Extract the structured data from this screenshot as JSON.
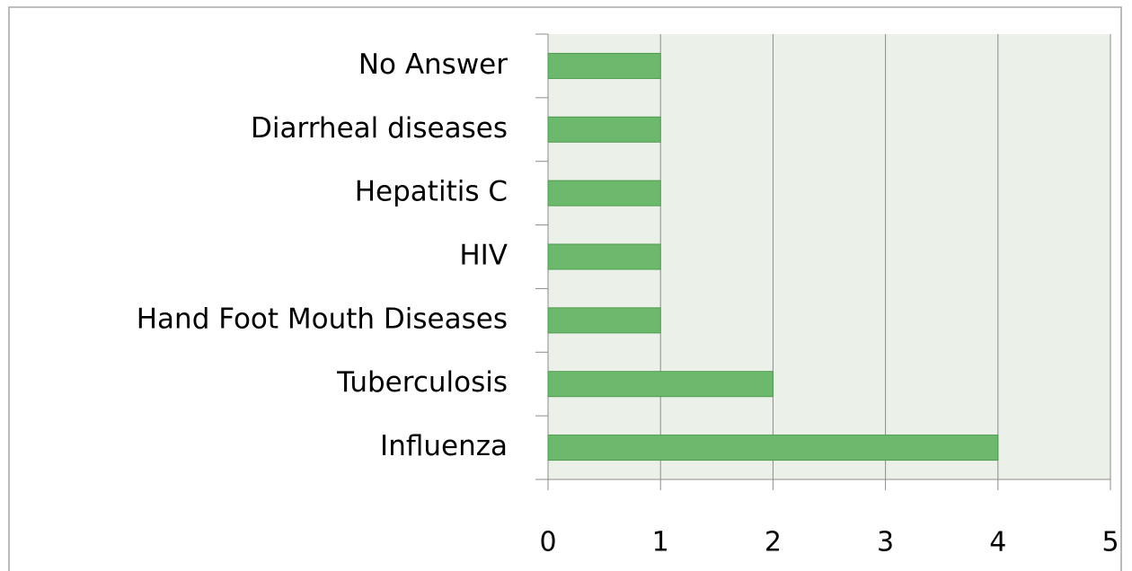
{
  "chart_data": {
    "type": "bar",
    "orientation": "horizontal",
    "categories": [
      "No Answer",
      "Diarrheal diseases",
      "Hepatitis C",
      "HIV",
      "Hand Foot Mouth Diseases",
      "Tuberculosis",
      "Influenza"
    ],
    "values": [
      1,
      1,
      1,
      1,
      1,
      2,
      4
    ],
    "color": "#6cb86c",
    "xlim": [
      0,
      5
    ],
    "xticks": [
      0,
      1,
      2,
      3,
      4,
      5
    ],
    "grid": true
  }
}
